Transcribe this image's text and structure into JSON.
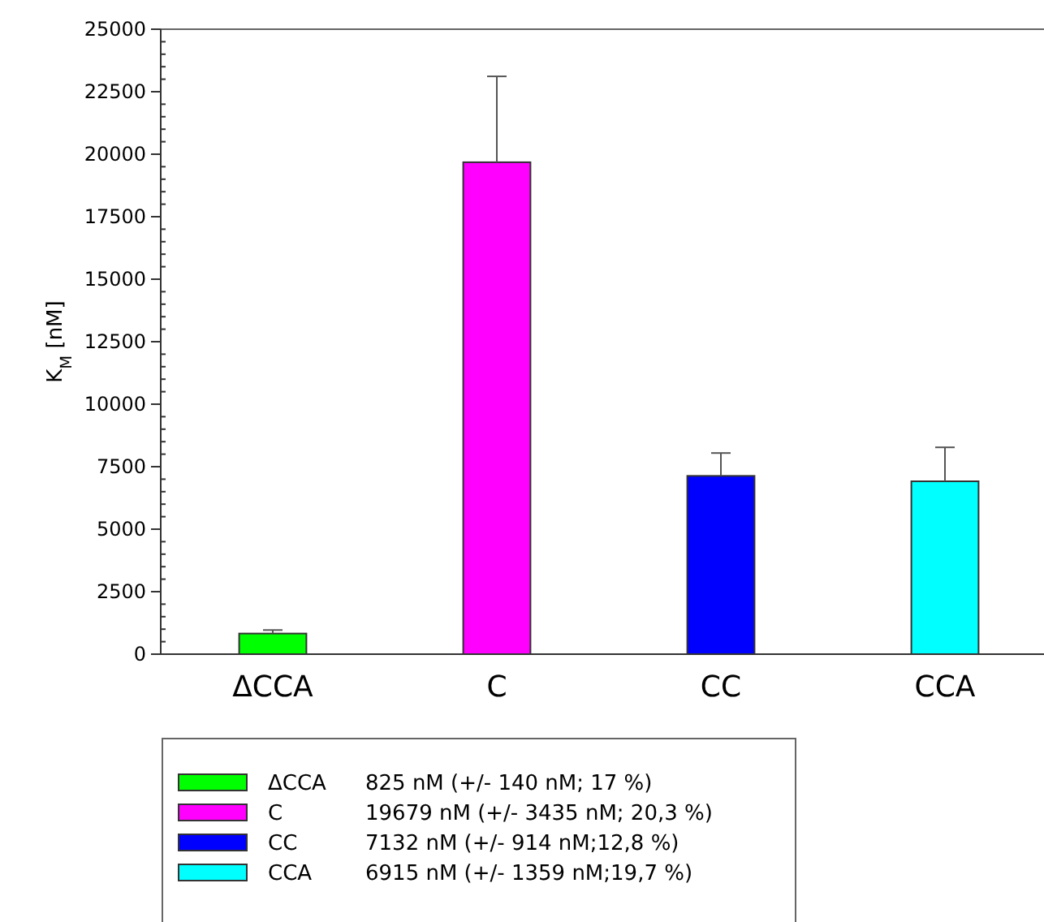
{
  "chart_data": {
    "type": "bar",
    "ylabel": "K$_{M}$ [nM]",
    "stacked": true,
    "categories": [
      "ΔCCA",
      "C",
      "CC",
      "CCA"
    ],
    "series": [
      {
        "name": "ΔCCA",
        "color": "#00ff00",
        "values": [
          825,
          null,
          null,
          null
        ],
        "errors": [
          [
            825,
            965
          ],
          null,
          null,
          null
        ]
      },
      {
        "name": "C",
        "color": "#ff00ff",
        "values": [
          null,
          19679,
          null,
          null
        ],
        "errors": [
          null,
          [
            19679,
            23114
          ],
          null,
          null
        ]
      },
      {
        "name": "CC",
        "color": "#0000ff",
        "values": [
          null,
          null,
          7132,
          null
        ],
        "errors": [
          null,
          null,
          [
            7132,
            8046
          ],
          null
        ]
      },
      {
        "name": "CCA",
        "color": "#00ffff",
        "values": [
          null,
          null,
          null,
          6915
        ],
        "errors": [
          null,
          null,
          null,
          [
            6915,
            8274
          ]
        ]
      }
    ],
    "ylim": [
      0,
      25000
    ],
    "yticks": [
      0,
      2500,
      5000,
      7500,
      10000,
      12500,
      15000,
      17500,
      20000,
      22500,
      25000
    ],
    "legend": "bottom",
    "annotations": [
      "825 nM (+/- 140 nM; 17 %)",
      "19679 nM (+/- 3435 nM; 20,3 %)",
      "7132 nM (+/- 914 nM;12,8 %)",
      "6915 nM (+/- 1359 nM;19,7 %)"
    ]
  }
}
